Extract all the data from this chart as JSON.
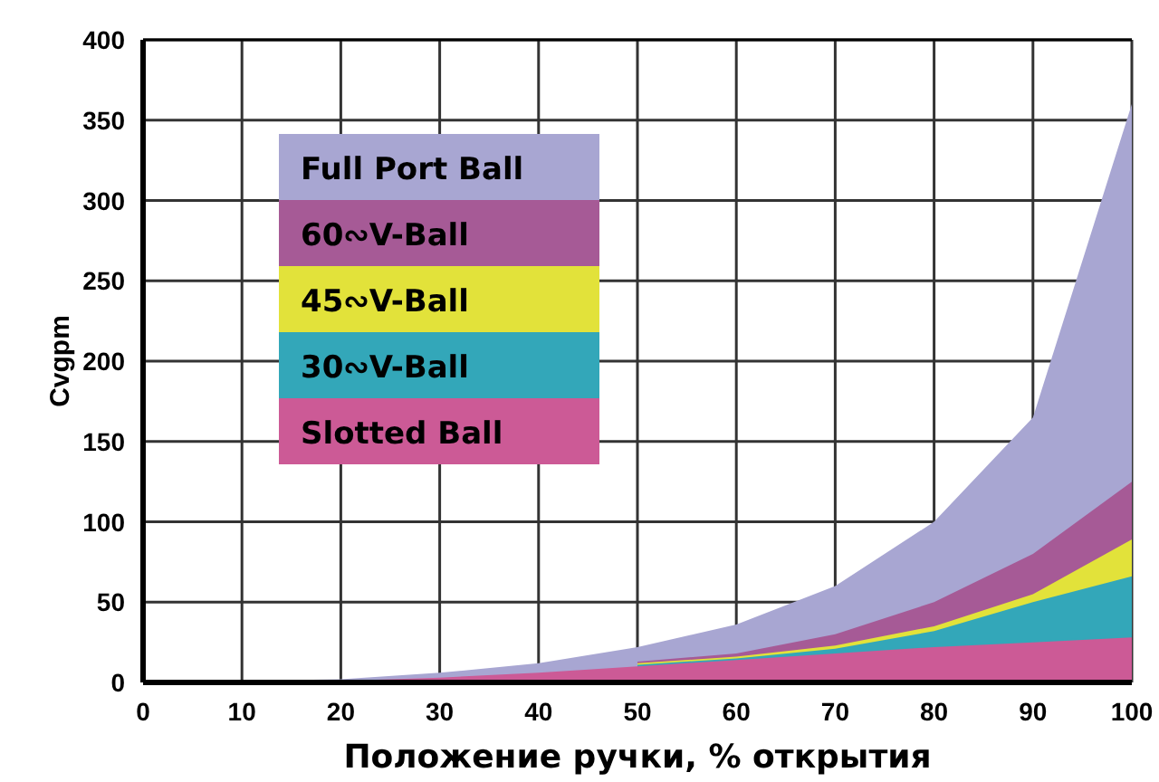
{
  "chart_data": {
    "type": "area",
    "xlabel": "Положение ручки, % открытия",
    "ylabel": "Cvgpm",
    "x": [
      0,
      10,
      20,
      30,
      40,
      50,
      60,
      70,
      80,
      90,
      100
    ],
    "series": [
      {
        "name": "Full Port Ball",
        "color": "#a8a6d2",
        "values": [
          0,
          1,
          2,
          6,
          12,
          22,
          36,
          60,
          100,
          165,
          360
        ]
      },
      {
        "name": "60∾V-Ball",
        "color": "#a65a96",
        "values": [
          null,
          null,
          null,
          null,
          null,
          13,
          18,
          30,
          50,
          80,
          125
        ]
      },
      {
        "name": "45∾V-Ball",
        "color": "#e2e23a",
        "values": [
          null,
          null,
          null,
          null,
          null,
          12,
          16,
          23,
          35,
          55,
          89
        ]
      },
      {
        "name": "30∾V-Ball",
        "color": "#33a7b9",
        "values": [
          null,
          null,
          null,
          null,
          null,
          11,
          15,
          21,
          32,
          50,
          66
        ]
      },
      {
        "name": "Slotted Ball",
        "color": "#cc5a96",
        "values": [
          0,
          0,
          1,
          3,
          6,
          10,
          14,
          18,
          22,
          25,
          28
        ]
      }
    ],
    "xlim": [
      0,
      100
    ],
    "xticks": [
      0,
      10,
      20,
      30,
      40,
      50,
      60,
      70,
      80,
      90,
      100
    ],
    "ylim": [
      0,
      400
    ],
    "yticks": [
      0,
      50,
      100,
      150,
      200,
      250,
      300,
      350,
      400
    ],
    "grid": true,
    "legend": "top left"
  }
}
